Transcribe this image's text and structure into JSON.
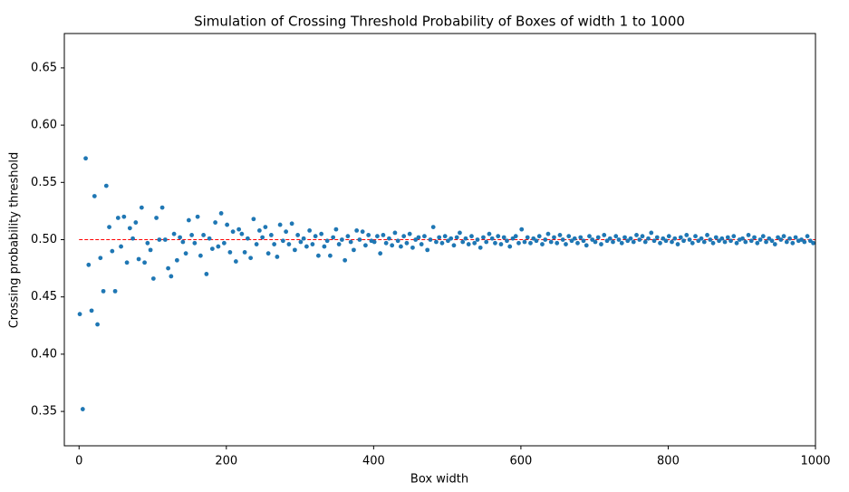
{
  "chart_data": {
    "type": "scatter",
    "title": "Simulation of Crossing Threshold Probability of Boxes of width 1 to 1000",
    "x_label": "Box width",
    "y_label": "Crossing probability threshold",
    "xlim": [
      -20,
      1000
    ],
    "ylim": [
      0.32,
      0.68
    ],
    "xticks": [
      0,
      200,
      400,
      600,
      800,
      1000
    ],
    "yticks": [
      0.35,
      {
        "value": 0.4,
        "label": "0.40"
      },
      0.45,
      {
        "value": 0.5,
        "label": "0.50"
      },
      0.55,
      {
        "value": 0.6,
        "label": "0.60"
      },
      0.65
    ],
    "hline": {
      "y": 0.5,
      "xmin": 0,
      "xmax": 1000,
      "color": "#ff0000"
    },
    "series": [
      {
        "color": "#1f77b4",
        "x": [
          1,
          5,
          9,
          13,
          17,
          21,
          25,
          29,
          33,
          37,
          41,
          45,
          49,
          53,
          57,
          61,
          65,
          69,
          73,
          77,
          81,
          85,
          89,
          93,
          97,
          101,
          105,
          109,
          113,
          117,
          121,
          125,
          129,
          133,
          137,
          141,
          145,
          149,
          153,
          157,
          161,
          165,
          169,
          173,
          177,
          181,
          185,
          189,
          193,
          197,
          201,
          205,
          209,
          213,
          217,
          221,
          225,
          229,
          233,
          237,
          241,
          245,
          249,
          253,
          257,
          261,
          265,
          269,
          273,
          277,
          281,
          285,
          289,
          293,
          297,
          301,
          305,
          309,
          313,
          317,
          321,
          325,
          329,
          333,
          337,
          341,
          345,
          349,
          353,
          357,
          361,
          365,
          369,
          373,
          377,
          381,
          385,
          389,
          393,
          397,
          401,
          405,
          409,
          413,
          417,
          421,
          425,
          429,
          433,
          437,
          441,
          445,
          449,
          453,
          457,
          461,
          465,
          469,
          473,
          477,
          481,
          485,
          489,
          493,
          497,
          501,
          505,
          509,
          513,
          517,
          521,
          525,
          529,
          533,
          537,
          541,
          545,
          549,
          553,
          557,
          561,
          565,
          569,
          573,
          577,
          581,
          585,
          589,
          593,
          597,
          601,
          605,
          609,
          613,
          617,
          621,
          625,
          629,
          633,
          637,
          641,
          645,
          649,
          653,
          657,
          661,
          665,
          669,
          673,
          677,
          681,
          685,
          689,
          693,
          697,
          701,
          705,
          709,
          713,
          717,
          721,
          725,
          729,
          733,
          737,
          741,
          745,
          749,
          753,
          757,
          761,
          765,
          769,
          773,
          777,
          781,
          785,
          789,
          793,
          797,
          801,
          805,
          809,
          813,
          817,
          821,
          825,
          829,
          833,
          837,
          841,
          845,
          849,
          853,
          857,
          861,
          865,
          869,
          873,
          877,
          881,
          885,
          889,
          893,
          897,
          901,
          905,
          909,
          913,
          917,
          921,
          925,
          929,
          933,
          937,
          941,
          945,
          949,
          953,
          957,
          961,
          965,
          969,
          973,
          977,
          981,
          985,
          989,
          993,
          997
        ],
        "values": [
          0.435,
          0.352,
          0.571,
          0.478,
          0.438,
          0.538,
          0.426,
          0.484,
          0.455,
          0.547,
          0.511,
          0.49,
          0.455,
          0.519,
          0.494,
          0.52,
          0.48,
          0.51,
          0.501,
          0.515,
          0.483,
          0.528,
          0.48,
          0.497,
          0.491,
          0.466,
          0.519,
          0.5,
          0.528,
          0.5,
          0.475,
          0.468,
          0.505,
          0.482,
          0.502,
          0.498,
          0.488,
          0.517,
          0.504,
          0.497,
          0.52,
          0.486,
          0.504,
          0.47,
          0.501,
          0.492,
          0.515,
          0.494,
          0.523,
          0.497,
          0.513,
          0.489,
          0.507,
          0.481,
          0.509,
          0.505,
          0.489,
          0.501,
          0.484,
          0.518,
          0.496,
          0.508,
          0.502,
          0.511,
          0.488,
          0.504,
          0.496,
          0.485,
          0.513,
          0.499,
          0.507,
          0.496,
          0.514,
          0.491,
          0.504,
          0.498,
          0.501,
          0.494,
          0.508,
          0.496,
          0.503,
          0.486,
          0.505,
          0.494,
          0.499,
          0.486,
          0.502,
          0.509,
          0.496,
          0.5,
          0.482,
          0.503,
          0.498,
          0.491,
          0.508,
          0.5,
          0.507,
          0.495,
          0.504,
          0.499,
          0.498,
          0.503,
          0.488,
          0.504,
          0.497,
          0.501,
          0.495,
          0.506,
          0.499,
          0.494,
          0.503,
          0.497,
          0.505,
          0.493,
          0.5,
          0.502,
          0.496,
          0.503,
          0.491,
          0.5,
          0.511,
          0.498,
          0.502,
          0.497,
          0.503,
          0.499,
          0.501,
          0.495,
          0.502,
          0.506,
          0.498,
          0.501,
          0.496,
          0.503,
          0.497,
          0.5,
          0.493,
          0.502,
          0.498,
          0.505,
          0.501,
          0.497,
          0.503,
          0.496,
          0.502,
          0.499,
          0.494,
          0.501,
          0.503,
          0.497,
          0.509,
          0.498,
          0.502,
          0.497,
          0.501,
          0.499,
          0.503,
          0.496,
          0.5,
          0.505,
          0.498,
          0.502,
          0.497,
          0.504,
          0.5,
          0.496,
          0.503,
          0.499,
          0.501,
          0.497,
          0.502,
          0.499,
          0.495,
          0.503,
          0.5,
          0.498,
          0.502,
          0.496,
          0.504,
          0.499,
          0.501,
          0.498,
          0.503,
          0.5,
          0.497,
          0.502,
          0.499,
          0.501,
          0.498,
          0.504,
          0.5,
          0.503,
          0.498,
          0.501,
          0.506,
          0.499,
          0.502,
          0.497,
          0.501,
          0.499,
          0.503,
          0.498,
          0.501,
          0.496,
          0.502,
          0.499,
          0.504,
          0.5,
          0.497,
          0.503,
          0.499,
          0.501,
          0.498,
          0.504,
          0.5,
          0.497,
          0.502,
          0.499,
          0.501,
          0.498,
          0.502,
          0.499,
          0.503,
          0.497,
          0.5,
          0.501,
          0.498,
          0.504,
          0.499,
          0.502,
          0.497,
          0.5,
          0.503,
          0.498,
          0.501,
          0.499,
          0.496,
          0.502,
          0.5,
          0.503,
          0.498,
          0.501,
          0.497,
          0.502,
          0.499,
          0.5,
          0.498,
          0.503,
          0.499,
          0.497
        ]
      }
    ]
  }
}
